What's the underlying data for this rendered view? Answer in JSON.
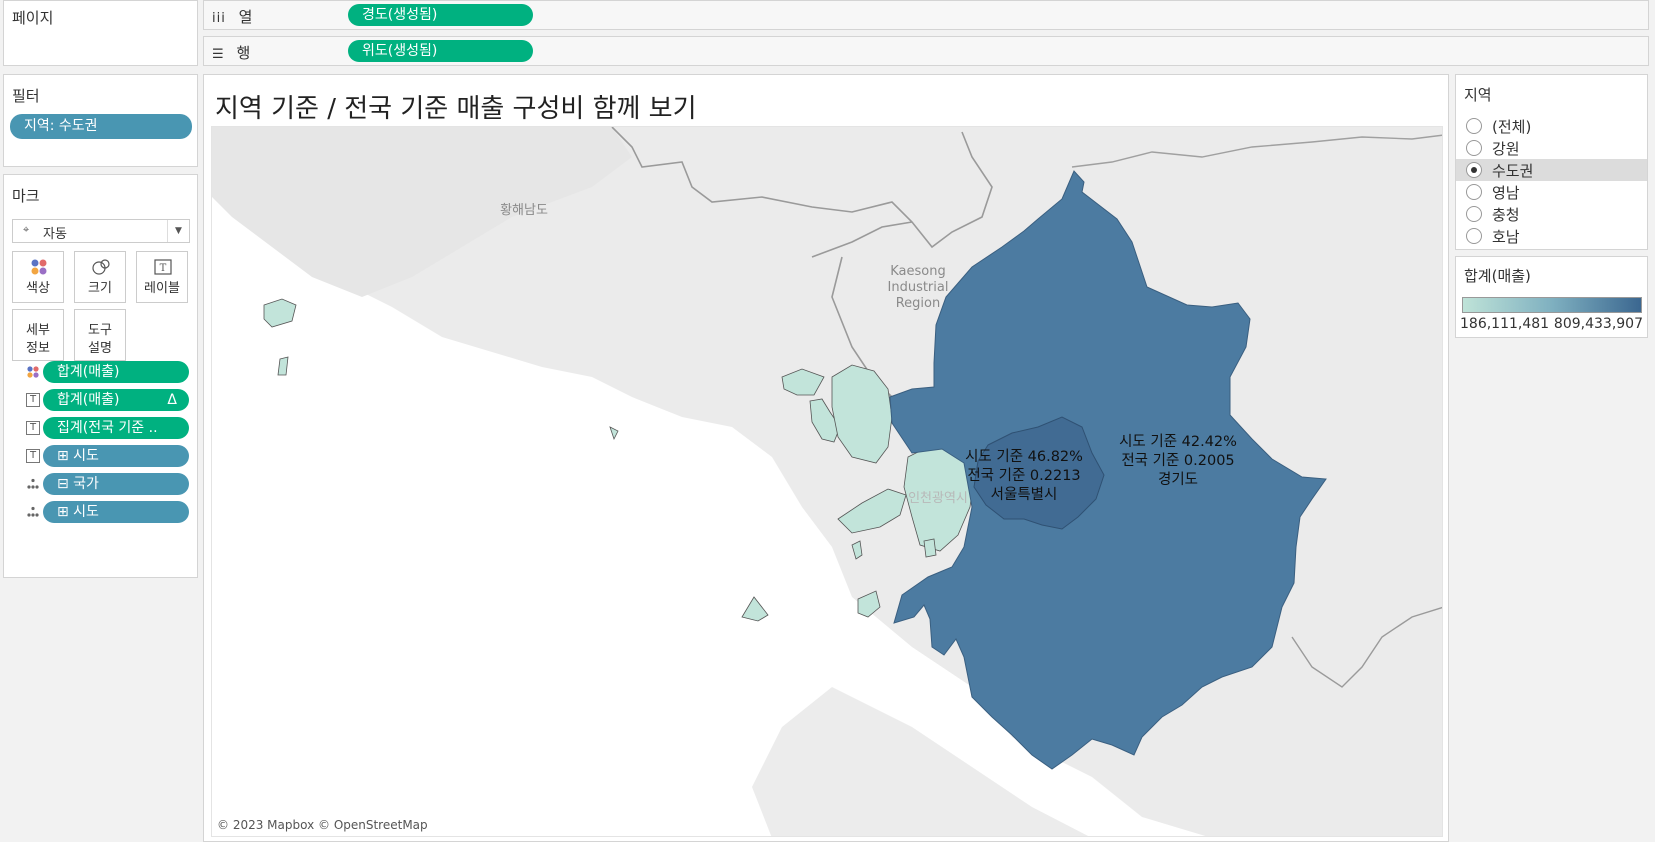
{
  "pages": {
    "title": "페이지"
  },
  "shelves": {
    "columns": {
      "icon": "columns-icon",
      "label": "열",
      "pill": "경도(생성됨)"
    },
    "rows": {
      "icon": "rows-icon",
      "label": "행",
      "pill": "위도(생성됨)"
    }
  },
  "filters": {
    "title": "필터",
    "pill": "지역: 수도권"
  },
  "marks": {
    "title": "마크",
    "type_select": "자동",
    "buttons": [
      {
        "icon": "color-icon",
        "label": "색상"
      },
      {
        "icon": "size-icon",
        "label": "크기"
      },
      {
        "icon": "label-icon",
        "label": "레이블"
      },
      {
        "icon": "",
        "label": "세부\n정보",
        "line1": "세부",
        "line2": "정보"
      },
      {
        "icon": "",
        "label": "도구\n설명",
        "line1": "도구",
        "line2": "설명"
      }
    ],
    "fields": [
      {
        "icon": "color-dots-icon",
        "label": "합계(매출)",
        "color": "green",
        "suffix": ""
      },
      {
        "icon": "text-icon",
        "label": "합계(매출)",
        "color": "green",
        "suffix": "Δ"
      },
      {
        "icon": "text-icon",
        "label": "집계(전국 기준 ..",
        "color": "green",
        "suffix": ""
      },
      {
        "icon": "text-icon",
        "label": "⊞ 시도",
        "color": "blue",
        "suffix": ""
      },
      {
        "icon": "detail-icon",
        "label": "⊟ 국가",
        "color": "blue",
        "suffix": ""
      },
      {
        "icon": "detail-icon",
        "label": "⊞ 시도",
        "color": "blue",
        "suffix": ""
      }
    ]
  },
  "sheet": {
    "title": "지역 기준 / 전국 기준 매출 구성비 함께 보기",
    "map_places": {
      "hwanghae": "황해남도",
      "kaesong": [
        "Kaesong",
        "Industrial",
        "Region"
      ],
      "incheon": "인천광역시"
    },
    "labels": [
      {
        "line1": "시도 기준 46.82%",
        "line2": "전국 기준 0.2213",
        "line3": "서울특별시"
      },
      {
        "line1": "시도 기준 42.42%",
        "line2": "전국 기준 0.2005",
        "line3": "경기도"
      }
    ],
    "attribution": "© 2023 Mapbox © OpenStreetMap"
  },
  "region_filter": {
    "title": "지역",
    "options": [
      "(전체)",
      "강원",
      "수도권",
      "영남",
      "충청",
      "호남"
    ],
    "selected": "수도권"
  },
  "legend": {
    "title": "합계(매출)",
    "min": "186,111,481",
    "max": "809,433,907",
    "color_min": "#bfe3d8",
    "color_max": "#3b6790"
  },
  "colors": {
    "pill_green": "#00b180",
    "pill_blue": "#4996b2",
    "gyeonggi": "#4c7ba1",
    "seoul": "#416b93",
    "incheon": "#c2e4da"
  }
}
